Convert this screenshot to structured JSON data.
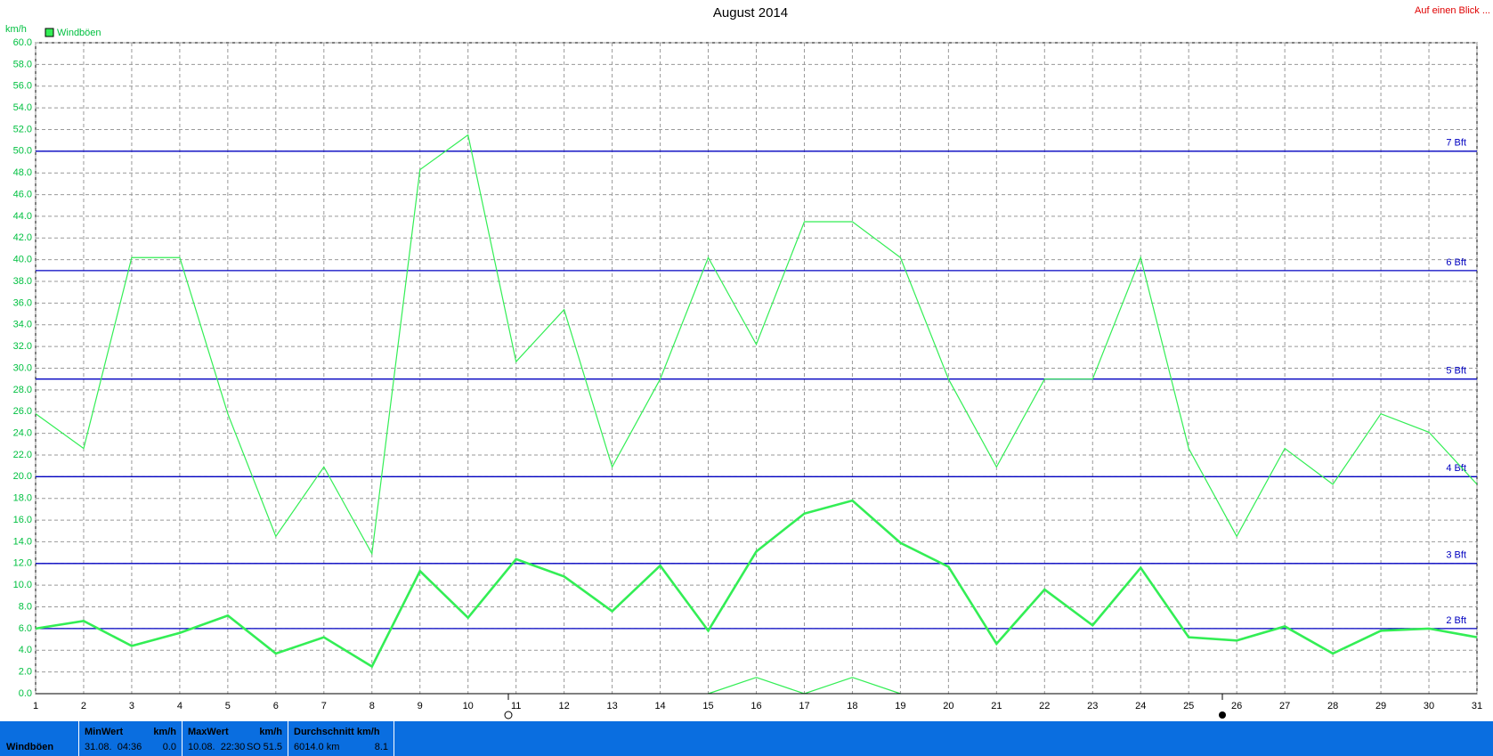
{
  "chart_data": {
    "type": "line",
    "title": "August 2014",
    "ylabel": "km/h",
    "link": "Auf einen Blick ...",
    "legend": "Windböen",
    "x": [
      1,
      2,
      3,
      4,
      5,
      6,
      7,
      8,
      9,
      10,
      11,
      12,
      13,
      14,
      15,
      16,
      17,
      18,
      19,
      20,
      21,
      22,
      23,
      24,
      25,
      26,
      27,
      28,
      29,
      30,
      31
    ],
    "xlim": [
      1,
      31
    ],
    "series": [
      {
        "name": "Windböen",
        "color": "#33ee55",
        "line_width": 1.2,
        "values": [
          25.8,
          22.6,
          40.2,
          40.2,
          25.8,
          14.5,
          20.9,
          12.9,
          48.3,
          51.5,
          30.6,
          35.4,
          20.9,
          29.0,
          40.2,
          32.2,
          43.5,
          43.5,
          40.2,
          29.0,
          20.9,
          29.0,
          29.0,
          40.2,
          22.6,
          14.5,
          22.6,
          19.3,
          25.8,
          24.1,
          19.3
        ]
      },
      {
        "color": "#33ee55",
        "line_width": 2.6,
        "values": [
          6.0,
          6.7,
          4.4,
          5.6,
          7.2,
          3.7,
          5.2,
          2.5,
          11.3,
          7.0,
          12.4,
          10.8,
          7.6,
          11.8,
          5.8,
          13.1,
          16.6,
          17.8,
          13.9,
          11.7,
          4.6,
          9.6,
          6.3,
          11.6,
          5.2,
          4.9,
          6.2,
          3.7,
          5.8,
          6.0,
          5.2
        ]
      },
      {
        "color": "#33ee55",
        "line_width": 1.2,
        "values": [
          null,
          null,
          null,
          null,
          null,
          null,
          null,
          null,
          null,
          null,
          null,
          null,
          null,
          null,
          0,
          1.5,
          0,
          1.5,
          0,
          null,
          null,
          null,
          null,
          null,
          null,
          null,
          null,
          null,
          null,
          null,
          null
        ]
      }
    ],
    "ylim": [
      0,
      60
    ],
    "yticks": [
      {
        "value": 0,
        "label": "0.0"
      },
      {
        "value": 2,
        "label": "2.0"
      },
      {
        "value": 4,
        "label": "4.0"
      },
      {
        "value": 6,
        "label": "6.0"
      },
      {
        "value": 8,
        "label": "8.0"
      },
      {
        "value": 10,
        "label": "10.0"
      },
      {
        "value": 12,
        "label": "12.0"
      },
      {
        "value": 14,
        "label": "14.0"
      },
      {
        "value": 16,
        "label": "16.0"
      },
      {
        "value": 18,
        "label": "18.0"
      },
      {
        "value": 20,
        "label": "20.0"
      },
      {
        "value": 22,
        "label": "22.0"
      },
      {
        "value": 24,
        "label": "24.0"
      },
      {
        "value": 26,
        "label": "26.0"
      },
      {
        "value": 28,
        "label": "28.0"
      },
      {
        "value": 30,
        "label": "30.0"
      },
      {
        "value": 32,
        "label": "32.0"
      },
      {
        "value": 34,
        "label": "34.0"
      },
      {
        "value": 36,
        "label": "36.0"
      },
      {
        "value": 38,
        "label": "38.0"
      },
      {
        "value": 40,
        "label": "40.0"
      },
      {
        "value": 42,
        "label": "42.0"
      },
      {
        "value": 44,
        "label": "44.0"
      },
      {
        "value": 46,
        "label": "46.0"
      },
      {
        "value": 48,
        "label": "48.0"
      },
      {
        "value": 50,
        "label": "50.0"
      },
      {
        "value": 52,
        "label": "52.0"
      },
      {
        "value": 54,
        "label": "54.0"
      },
      {
        "value": 56,
        "label": "56.0"
      },
      {
        "value": 58,
        "label": "58.0"
      },
      {
        "value": 60,
        "label": "60.0"
      }
    ],
    "grid": true,
    "reference_lines": {
      "color": "#0000c0",
      "lines": [
        {
          "value": 6,
          "label": "2 Bft"
        },
        {
          "value": 12,
          "label": "3 Bft"
        },
        {
          "value": 20,
          "label": "4 Bft"
        },
        {
          "value": 29,
          "label": "5 Bft"
        },
        {
          "value": 39,
          "label": "6 Bft"
        },
        {
          "value": 50,
          "label": "7 Bft"
        }
      ]
    }
  },
  "summary": {
    "label": "Windböen",
    "columns": [
      {
        "header": "MinWert",
        "unit": "km/h",
        "date": "31.08.  04:36",
        "value": "0.0"
      },
      {
        "header": "MaxWert",
        "unit": "km/h",
        "date": "10.08.  22:30",
        "dir": "SO",
        "value": "51.5"
      },
      {
        "header": "Durchschnitt km/h",
        "date": "6014.0 km",
        "value": "8.1"
      }
    ]
  }
}
